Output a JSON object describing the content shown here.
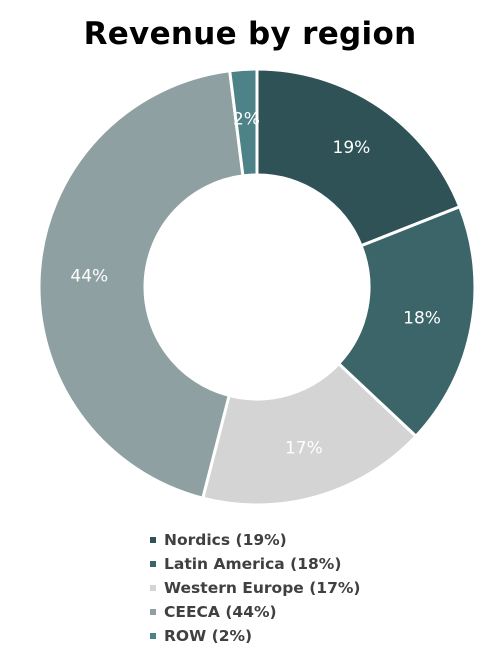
{
  "chart_data": {
    "type": "pie",
    "title": "Revenue by region",
    "donut": true,
    "categories": [
      "Nordics",
      "Latin America",
      "Western Europe",
      "CEECA",
      "ROW"
    ],
    "values": [
      19,
      18,
      17,
      44,
      2
    ],
    "value_labels": [
      "19%",
      "18%",
      "17%",
      "44%",
      "2%"
    ],
    "colors": [
      "#2f5256",
      "#3b6569",
      "#d4d4d4",
      "#8fa0a2",
      "#4d8288"
    ],
    "label_colors": [
      "#ffffff",
      "#ffffff",
      "#ffffff",
      "#ffffff",
      "#ffffff"
    ],
    "legend": {
      "position": "bottom",
      "entries": [
        "Nordics (19%)",
        "Latin America (18%)",
        "Western Europe (17%)",
        "CEECA (44%)",
        "ROW (2%)"
      ]
    }
  }
}
